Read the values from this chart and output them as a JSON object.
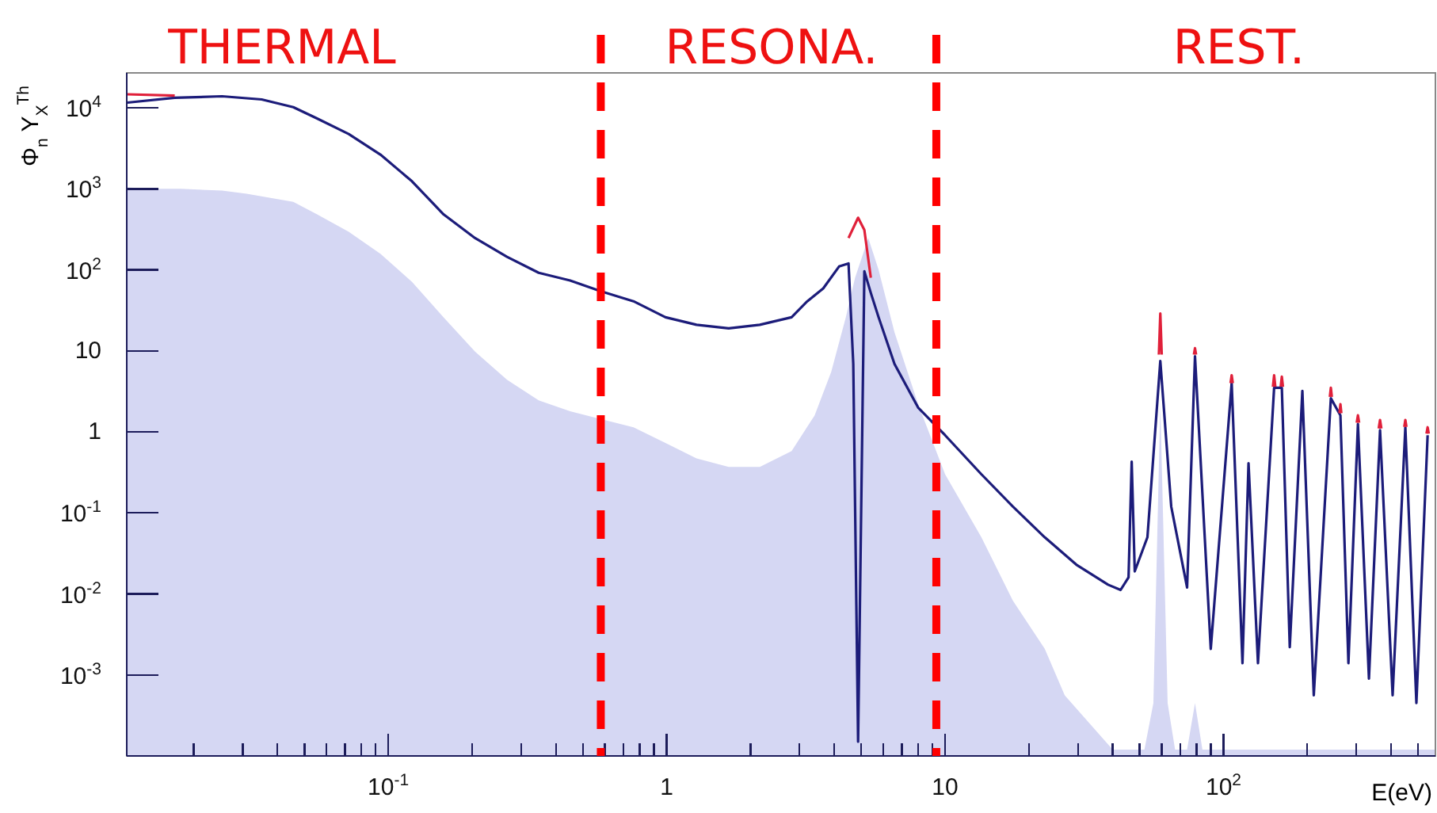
{
  "chart_data": {
    "type": "line",
    "xlabel": "E(eV)",
    "ylabel": "Φ$_{n}$ Y$_{X}$$^{Th}$",
    "log": "xy",
    "annotations": [
      "THERMAL",
      "RESONA.",
      "REST."
    ],
    "xlim": [
      0.0115,
      577
    ],
    "ylim": [
      0.0001,
      27000
    ],
    "xticks": [
      {
        "value": 0.02,
        "label": null
      },
      {
        "value": 0.03,
        "label": null
      },
      {
        "value": 0.04,
        "label": null
      },
      {
        "value": 0.05,
        "label": null
      },
      {
        "value": 0.06,
        "label": null
      },
      {
        "value": 0.07,
        "label": null
      },
      {
        "value": 0.08,
        "label": null
      },
      {
        "value": 0.09,
        "label": null
      },
      {
        "value": 0.1,
        "label": "10$^{-1}$"
      },
      {
        "value": 0.2,
        "label": null
      },
      {
        "value": 0.3,
        "label": null
      },
      {
        "value": 0.4,
        "label": null
      },
      {
        "value": 0.5,
        "label": null
      },
      {
        "value": 0.6,
        "label": null
      },
      {
        "value": 0.7,
        "label": null
      },
      {
        "value": 0.8,
        "label": null
      },
      {
        "value": 0.9,
        "label": null
      },
      {
        "value": 1,
        "label": "1"
      },
      {
        "value": 2,
        "label": null
      },
      {
        "value": 3,
        "label": null
      },
      {
        "value": 4,
        "label": null
      },
      {
        "value": 5,
        "label": null
      },
      {
        "value": 6,
        "label": null
      },
      {
        "value": 7,
        "label": null
      },
      {
        "value": 8,
        "label": null
      },
      {
        "value": 9,
        "label": null
      },
      {
        "value": 10,
        "label": "10"
      },
      {
        "value": 20,
        "label": null
      },
      {
        "value": 30,
        "label": null
      },
      {
        "value": 40,
        "label": null
      },
      {
        "value": 50,
        "label": null
      },
      {
        "value": 60,
        "label": null
      },
      {
        "value": 70,
        "label": null
      },
      {
        "value": 80,
        "label": null
      },
      {
        "value": 90,
        "label": null
      },
      {
        "value": 100,
        "label": "10$^{2}$"
      },
      {
        "value": 200,
        "label": null
      },
      {
        "value": 300,
        "label": null
      },
      {
        "value": 400,
        "label": null
      },
      {
        "value": 500,
        "label": null
      }
    ],
    "yticks": [
      {
        "value": 0.001,
        "label": "10$^{-3}$"
      },
      {
        "value": 0.01,
        "label": "10$^{-2}$"
      },
      {
        "value": 0.1,
        "label": "10$^{-1}$"
      },
      1,
      10,
      {
        "value": 100,
        "label": "10$^{2}$"
      },
      {
        "value": 1000,
        "label": "10$^{3}$"
      },
      {
        "value": 10000,
        "label": "10$^{4}$"
      }
    ],
    "ref_lines": [
      {
        "axis": "x",
        "value": 0.58,
        "color": "#ff0000",
        "line_style": "dashed"
      },
      {
        "axis": "x",
        "value": 9.3,
        "color": "#ff0000",
        "line_style": "dashed"
      }
    ],
    "series": [
      {
        "type": "area",
        "color": "#d5d7f3",
        "x": [
          0.0115,
          0.0144,
          0.018,
          0.0253,
          0.031,
          0.0456,
          0.0555,
          0.0721,
          0.0937,
          0.1217,
          0.158,
          0.205,
          0.267,
          0.347,
          0.45,
          0.585,
          0.76,
          0.99,
          1.28,
          1.67,
          2.16,
          2.81,
          3.4,
          3.9,
          4.4,
          4.75,
          5.3,
          5.77,
          6.58,
          8.0,
          10,
          13.5,
          17.5,
          22.8,
          26.9,
          40,
          52,
          56,
          59.3,
          63,
          67,
          74,
          79,
          84,
          577
        ],
        "values": [
          1040,
          1000,
          1000,
          950,
          870,
          690,
          484,
          295,
          158,
          71,
          26,
          9.8,
          4.4,
          2.45,
          1.8,
          1.43,
          1.14,
          0.73,
          0.47,
          0.37,
          0.37,
          0.58,
          1.6,
          5.5,
          26,
          80,
          247,
          100,
          17,
          2.2,
          0.3,
          0.05,
          0.0083,
          0.0021,
          0.00056,
          0.00012,
          0.00012,
          0.00045,
          2.2,
          0.00045,
          0.00012,
          0.00012,
          0.00045,
          0.00012,
          0.00012
        ]
      },
      {
        "color": "#1c1c7a",
        "x": [
          0.01155,
          0.0171,
          0.0253,
          0.0351,
          0.0456,
          0.0555,
          0.0721,
          0.0937,
          0.1217,
          0.158,
          0.205,
          0.267,
          0.347,
          0.45,
          0.585,
          0.76,
          0.99,
          1.28,
          1.67,
          2.16,
          2.81,
          3.2,
          3.65,
          4.16,
          4.5,
          4.68,
          4.87,
          5.13,
          5.41,
          5.77,
          6.58,
          8.0,
          10,
          13.5,
          17.5,
          22.8,
          29.6,
          38.5,
          42.7,
          45.6,
          46.8,
          48,
          53.3,
          59.3,
          64.9,
          74,
          79,
          90,
          107,
          117,
          123,
          133,
          152,
          162,
          173,
          192,
          211,
          243,
          263,
          281,
          304,
          333,
          365,
          405,
          450,
          493,
          541
        ],
        "values": [
          11600,
          13300,
          13900,
          12700,
          10200,
          7400,
          4750,
          2650,
          1240,
          484,
          247,
          145,
          92,
          74,
          54,
          41,
          26,
          21,
          19,
          21,
          26,
          41,
          59,
          110,
          120,
          6.9,
          0.00015,
          96,
          52,
          26,
          6.9,
          2.0,
          0.91,
          0.3,
          0.12,
          0.05,
          0.023,
          0.013,
          0.0112,
          0.016,
          0.43,
          0.019,
          0.05,
          7.5,
          0.12,
          0.012,
          8.6,
          0.0021,
          4.0,
          0.0014,
          0.41,
          0.0014,
          3.5,
          3.5,
          0.0022,
          3.2,
          0.00056,
          2.6,
          1.6,
          0.0014,
          1.25,
          0.0009,
          1.05,
          0.00056,
          1.14,
          0.00045,
          0.91
        ]
      },
      {
        "color": "#e0203a",
        "x": [
          0.01155,
          0.0171
        ],
        "values": [
          14700,
          14200
        ]
      },
      {
        "color": "#e0203a",
        "x": [
          4.5,
          4.87,
          5.13,
          5.41
        ],
        "values": [
          247,
          440,
          310,
          80
        ]
      },
      {
        "color": "#e0203a",
        "x": [
          58.6,
          59.3,
          60
        ],
        "values": [
          9,
          29,
          9
        ]
      },
      {
        "color": "#e0203a",
        "x": [
          78.3,
          79,
          79.7
        ],
        "values": [
          9,
          10.8,
          9
        ]
      },
      {
        "color": "#e0203a",
        "x": [
          106,
          107,
          108
        ],
        "values": [
          4,
          5.0,
          4
        ]
      },
      {
        "color": "#e0203a",
        "x": [
          150.5,
          152,
          153.5
        ],
        "values": [
          3.6,
          5.0,
          3.6
        ]
      },
      {
        "color": "#e0203a",
        "x": [
          160.5,
          162,
          163.5
        ],
        "values": [
          3.6,
          4.8,
          3.6
        ]
      },
      {
        "color": "#e0203a",
        "x": [
          241,
          243,
          245
        ],
        "values": [
          2.7,
          3.5,
          2.7
        ]
      },
      {
        "color": "#e0203a",
        "x": [
          261,
          263,
          265
        ],
        "values": [
          1.7,
          2.2,
          1.7
        ]
      },
      {
        "color": "#e0203a",
        "x": [
          301,
          304,
          307
        ],
        "values": [
          1.3,
          1.6,
          1.3
        ]
      },
      {
        "color": "#e0203a",
        "x": [
          361,
          365,
          369
        ],
        "values": [
          1.1,
          1.4,
          1.1
        ]
      },
      {
        "color": "#e0203a",
        "x": [
          446,
          450,
          454
        ],
        "values": [
          1.15,
          1.4,
          1.15
        ]
      },
      {
        "color": "#e0203a",
        "x": [
          536,
          541,
          546
        ],
        "values": [
          0.95,
          1.14,
          0.95
        ]
      }
    ]
  }
}
